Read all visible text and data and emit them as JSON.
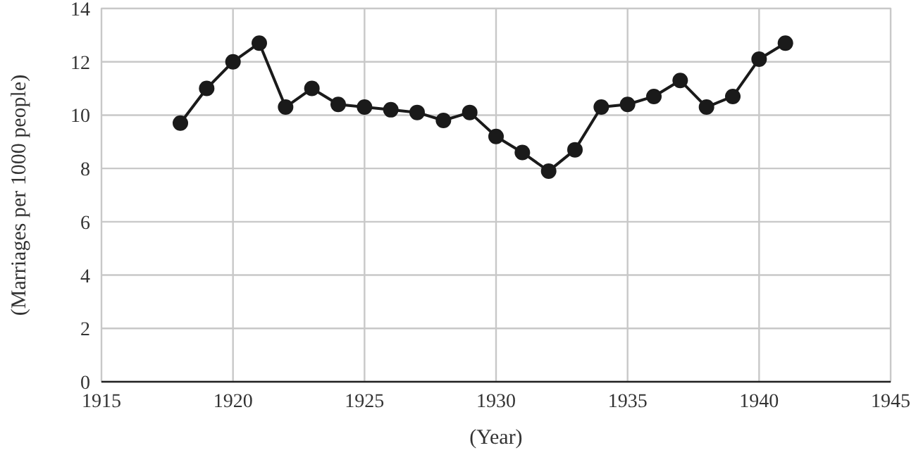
{
  "chart_data": {
    "type": "line",
    "xlabel": "(Year)",
    "ylabel": "(Marriages per 1000 people)",
    "x": [
      1918,
      1919,
      1920,
      1921,
      1922,
      1923,
      1924,
      1925,
      1926,
      1927,
      1928,
      1929,
      1930,
      1931,
      1932,
      1933,
      1934,
      1935,
      1936,
      1937,
      1938,
      1939,
      1940,
      1941
    ],
    "series": [
      {
        "color": "#1a1a1a",
        "values": [
          9.7,
          11.0,
          12.0,
          12.7,
          10.3,
          11.0,
          10.4,
          10.3,
          10.2,
          10.1,
          9.8,
          10.1,
          9.2,
          8.6,
          7.9,
          8.7,
          10.3,
          10.4,
          10.7,
          11.3,
          10.3,
          10.7,
          12.1,
          12.7
        ]
      }
    ],
    "xlim": [
      1915,
      1945
    ],
    "xticks": [
      1915,
      1920,
      1925,
      1930,
      1935,
      1940,
      1945
    ],
    "ylim": [
      0,
      14
    ],
    "yticks": [
      0,
      2,
      4,
      6,
      8,
      10,
      12,
      14
    ],
    "grid": true,
    "marker": "circle",
    "line_style": "solid"
  }
}
